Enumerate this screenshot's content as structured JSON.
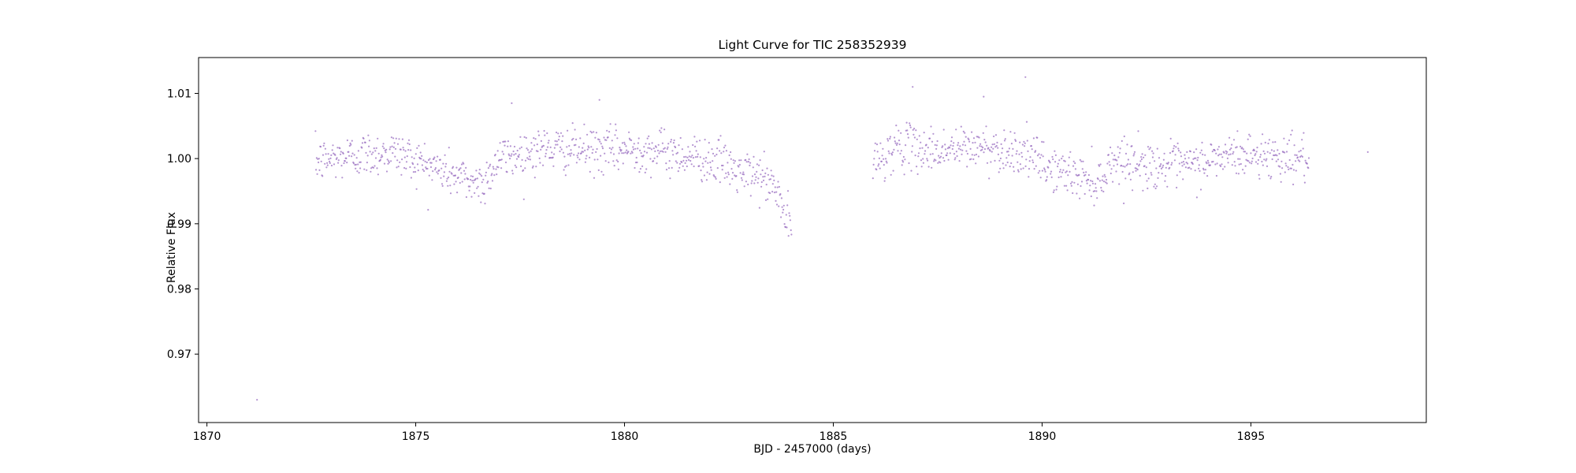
{
  "chart_data": {
    "type": "scatter",
    "title": "Light Curve for TIC 258352939",
    "xlabel": "BJD - 2457000 (days)",
    "ylabel": "Relative Flux",
    "xlim": [
      1869.8,
      1899.2
    ],
    "ylim": [
      0.9595,
      1.0155
    ],
    "xticks": [
      1870,
      1875,
      1880,
      1885,
      1890,
      1895
    ],
    "xtick_labels": [
      "1870",
      "1875",
      "1880",
      "1885",
      "1890",
      "1895"
    ],
    "yticks": [
      0.97,
      0.98,
      0.99,
      1.0,
      1.01
    ],
    "ytick_labels": [
      "0.97",
      "0.98",
      "0.99",
      "1.00",
      "1.01"
    ],
    "grid": false,
    "legend": "none",
    "marker_color": "#9467bd",
    "series": [
      {
        "segments": [
          {
            "x_start": 1872.6,
            "x_end": 1884.0,
            "spacing": 0.0139
          },
          {
            "x_start": 1885.95,
            "x_end": 1896.4,
            "spacing": 0.0139
          }
        ],
        "trend_knots_x": [
          1872.6,
          1873.5,
          1874.5,
          1875.5,
          1876.3,
          1876.6,
          1877.0,
          1878.0,
          1879.5,
          1880.5,
          1881.5,
          1882.3,
          1882.8,
          1883.2,
          1883.6,
          1883.9,
          1884.0,
          1885.95,
          1886.5,
          1887.5,
          1888.5,
          1889.5,
          1890.2,
          1891.0,
          1891.4,
          1891.7,
          1892.5,
          1893.5,
          1894.5,
          1895.5,
          1896.4
        ],
        "trend_knots_y": [
          0.9995,
          1.0005,
          1.001,
          0.9985,
          0.9965,
          0.9962,
          1.0,
          1.0015,
          1.0012,
          1.0015,
          1.0005,
          0.9995,
          0.9975,
          0.9975,
          0.9955,
          0.9905,
          0.989,
          0.999,
          1.002,
          1.0012,
          1.0018,
          1.001,
          0.9985,
          0.997,
          0.9965,
          1.0,
          0.999,
          0.9988,
          1.0005,
          1.0005,
          1.0
        ],
        "scatter_sigma": 0.0017,
        "outliers": [
          {
            "x": 1871.2,
            "y": 0.963
          },
          {
            "x": 1897.8,
            "y": 1.001
          },
          {
            "x": 1889.6,
            "y": 1.0125
          },
          {
            "x": 1886.9,
            "y": 1.011
          },
          {
            "x": 1888.6,
            "y": 1.0095
          },
          {
            "x": 1879.4,
            "y": 1.009
          },
          {
            "x": 1877.3,
            "y": 1.0085
          }
        ]
      }
    ]
  }
}
